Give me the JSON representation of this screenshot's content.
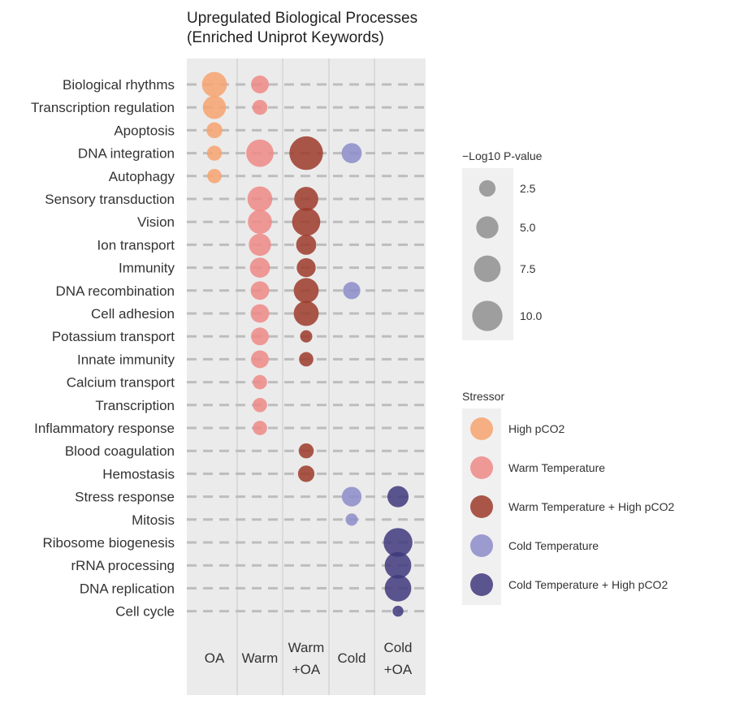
{
  "chart_data": {
    "type": "bubble-matrix",
    "title_lines": [
      "Upregulated Biological Processes",
      "(Enriched Uniprot Keywords)"
    ],
    "columns": [
      {
        "key": "OA",
        "label_lines": [
          "OA"
        ],
        "stressor": "High pCO2",
        "color": "#f7a36e"
      },
      {
        "key": "Warm",
        "label_lines": [
          "Warm"
        ],
        "stressor": "Warm Temperature",
        "color": "#ef8a87"
      },
      {
        "key": "WarmOA",
        "label_lines": [
          "Warm",
          "+OA"
        ],
        "stressor": "Warm Temperature + High pCO2",
        "color": "#9c3b2c"
      },
      {
        "key": "Cold",
        "label_lines": [
          "Cold"
        ],
        "stressor": "Cold Temperature",
        "color": "#8d8cc9"
      },
      {
        "key": "ColdOA",
        "label_lines": [
          "Cold",
          "+OA"
        ],
        "stressor": "Cold Temperature + High pCO2",
        "color": "#3f3a7c"
      }
    ],
    "rows": [
      "Biological rhythms",
      "Transcription regulation",
      "Apoptosis",
      "DNA integration",
      "Autophagy",
      "Sensory transduction",
      "Vision",
      "Ion transport",
      "Immunity",
      "DNA recombination",
      "Cell adhesion",
      "Potassium transport",
      "Innate immunity",
      "Calcium transport",
      "Transcription",
      "Inflammatory response",
      "Blood coagulation",
      "Hemostasis",
      "Stress response",
      "Mitosis",
      "Ribosome biogenesis",
      "rRNA processing",
      "DNA replication",
      "Cell cycle"
    ],
    "points": [
      {
        "row": "Biological rhythms",
        "col": "OA",
        "value": 6.5
      },
      {
        "row": "Biological rhythms",
        "col": "Warm",
        "value": 3.0
      },
      {
        "row": "Transcription regulation",
        "col": "OA",
        "value": 5.5
      },
      {
        "row": "Transcription regulation",
        "col": "Warm",
        "value": 2.0
      },
      {
        "row": "Apoptosis",
        "col": "OA",
        "value": 2.3
      },
      {
        "row": "DNA integration",
        "col": "OA",
        "value": 2.0
      },
      {
        "row": "DNA integration",
        "col": "Warm",
        "value": 8.0
      },
      {
        "row": "DNA integration",
        "col": "WarmOA",
        "value": 12.5
      },
      {
        "row": "DNA integration",
        "col": "Cold",
        "value": 4.0
      },
      {
        "row": "Autophagy",
        "col": "OA",
        "value": 1.8
      },
      {
        "row": "Sensory transduction",
        "col": "Warm",
        "value": 6.5
      },
      {
        "row": "Sensory transduction",
        "col": "WarmOA",
        "value": 6.0
      },
      {
        "row": "Vision",
        "col": "Warm",
        "value": 6.0
      },
      {
        "row": "Vision",
        "col": "WarmOA",
        "value": 8.5
      },
      {
        "row": "Ion transport",
        "col": "Warm",
        "value": 5.0
      },
      {
        "row": "Ion transport",
        "col": "WarmOA",
        "value": 4.0
      },
      {
        "row": "Immunity",
        "col": "Warm",
        "value": 4.0
      },
      {
        "row": "Immunity",
        "col": "WarmOA",
        "value": 3.5
      },
      {
        "row": "DNA recombination",
        "col": "Warm",
        "value": 3.3
      },
      {
        "row": "DNA recombination",
        "col": "WarmOA",
        "value": 6.5
      },
      {
        "row": "DNA recombination",
        "col": "Cold",
        "value": 2.8
      },
      {
        "row": "Cell adhesion",
        "col": "Warm",
        "value": 3.3
      },
      {
        "row": "Cell adhesion",
        "col": "WarmOA",
        "value": 6.5
      },
      {
        "row": "Potassium transport",
        "col": "Warm",
        "value": 3.0
      },
      {
        "row": "Potassium transport",
        "col": "WarmOA",
        "value": 1.2
      },
      {
        "row": "Innate immunity",
        "col": "Warm",
        "value": 3.0
      },
      {
        "row": "Innate immunity",
        "col": "WarmOA",
        "value": 1.8
      },
      {
        "row": "Calcium transport",
        "col": "Warm",
        "value": 1.8
      },
      {
        "row": "Transcription",
        "col": "Warm",
        "value": 1.8
      },
      {
        "row": "Inflammatory response",
        "col": "Warm",
        "value": 1.8
      },
      {
        "row": "Blood coagulation",
        "col": "WarmOA",
        "value": 2.0
      },
      {
        "row": "Hemostasis",
        "col": "WarmOA",
        "value": 2.5
      },
      {
        "row": "Stress response",
        "col": "Cold",
        "value": 3.8
      },
      {
        "row": "Stress response",
        "col": "ColdOA",
        "value": 4.5
      },
      {
        "row": "Mitosis",
        "col": "Cold",
        "value": 1.2
      },
      {
        "row": "Ribosome biogenesis",
        "col": "ColdOA",
        "value": 9.0
      },
      {
        "row": "rRNA processing",
        "col": "ColdOA",
        "value": 7.5
      },
      {
        "row": "DNA replication",
        "col": "ColdOA",
        "value": 7.5
      },
      {
        "row": "Cell cycle",
        "col": "ColdOA",
        "value": 0.9
      }
    ],
    "size_legend": {
      "title": "−Log10 P-value",
      "values": [
        2.5,
        5.0,
        7.5,
        10.0
      ],
      "labels": [
        "2.5",
        "5.0",
        "7.5",
        "10.0"
      ]
    },
    "color_legend": {
      "title": "Stressor",
      "items": [
        {
          "label": "High pCO2",
          "color": "#f7a36e"
        },
        {
          "label": "Warm Temperature",
          "color": "#ef8a87"
        },
        {
          "label": "Warm Temperature + High pCO2",
          "color": "#9c3b2c"
        },
        {
          "label": "Cold Temperature",
          "color": "#8d8cc9"
        },
        {
          "label": "Cold Temperature + High pCO2",
          "color": "#3f3a7c"
        }
      ]
    },
    "panel_background": "#ebebeb",
    "gridline_color": "#bdbdbd",
    "legend_swatch_gray": "#9e9e9e"
  }
}
